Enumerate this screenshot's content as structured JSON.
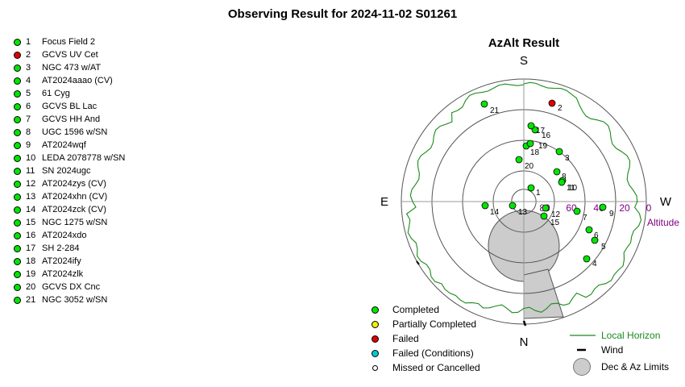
{
  "title": "Observing Result for 2024-11-02 S01261",
  "targets": [
    {
      "num": "1",
      "name": "Focus Field 2",
      "status": "completed"
    },
    {
      "num": "2",
      "name": "GCVS UV Cet",
      "status": "failed"
    },
    {
      "num": "3",
      "name": "NGC 473 w/AT",
      "status": "completed"
    },
    {
      "num": "4",
      "name": "AT2024aaao (CV)",
      "status": "completed"
    },
    {
      "num": "5",
      "name": "61 Cyg",
      "status": "completed"
    },
    {
      "num": "6",
      "name": "GCVS BL Lac",
      "status": "completed"
    },
    {
      "num": "7",
      "name": "GCVS HH And",
      "status": "completed"
    },
    {
      "num": "8",
      "name": "UGC 1596 w/SN",
      "status": "completed"
    },
    {
      "num": "9",
      "name": "AT2024wqf",
      "status": "completed"
    },
    {
      "num": "10",
      "name": "LEDA 2078778 w/SN",
      "status": "completed"
    },
    {
      "num": "11",
      "name": "SN 2024ugc",
      "status": "completed"
    },
    {
      "num": "12",
      "name": "AT2024zys (CV)",
      "status": "completed"
    },
    {
      "num": "13",
      "name": "AT2024xhn (CV)",
      "status": "completed"
    },
    {
      "num": "14",
      "name": "AT2024zck (CV)",
      "status": "completed"
    },
    {
      "num": "15",
      "name": "NGC 1275 w/SN",
      "status": "completed"
    },
    {
      "num": "16",
      "name": "AT2024xdo",
      "status": "completed"
    },
    {
      "num": "17",
      "name": "SH 2-284",
      "status": "completed"
    },
    {
      "num": "18",
      "name": "AT2024ify",
      "status": "completed"
    },
    {
      "num": "19",
      "name": "AT2024zlk",
      "status": "completed"
    },
    {
      "num": "20",
      "name": "GCVS DX Cnc",
      "status": "completed"
    },
    {
      "num": "21",
      "name": "NGC 3052 w/SN",
      "status": "completed"
    }
  ],
  "chart": {
    "title": "AzAlt Result",
    "directions": {
      "north": "N",
      "south": "S",
      "east": "E",
      "west": "W"
    },
    "altitude_label": "Altitude",
    "altitude_ticks": [
      "0",
      "20",
      "40",
      "60",
      "80"
    ],
    "colors": {
      "completed": "#00e600",
      "partial": "#f0f000",
      "failed": "#e00000",
      "failed_conditions": "#00cccc",
      "missed": "#ffffff",
      "horizon": "#1a8a1a",
      "altitude_text": "#800080",
      "limits_fill": "#cccccc"
    }
  },
  "legend": {
    "completed": "Completed",
    "partial": "Partially Completed",
    "failed": "Failed",
    "failed_conditions": "Failed (Conditions)",
    "missed": "Missed or Cancelled",
    "local_horizon": "Local Horizon",
    "wind": "Wind",
    "limits": "Dec & Az Limits"
  }
}
